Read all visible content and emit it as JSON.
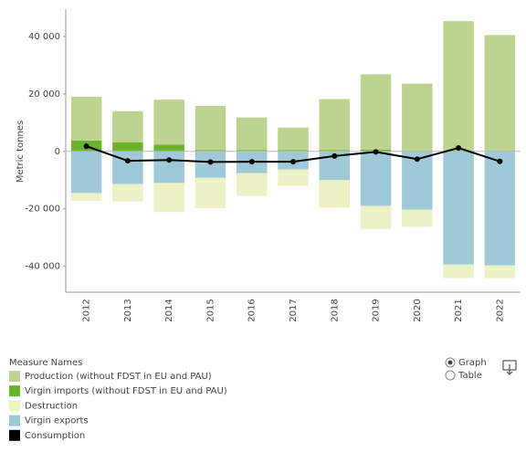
{
  "chart_data": {
    "type": "bar",
    "stacked": true,
    "y_label": "Metric tonnes",
    "categories": [
      "2012",
      "2013",
      "2014",
      "2015",
      "2016",
      "2017",
      "2018",
      "2019",
      "2020",
      "2021",
      "2022"
    ],
    "series": [
      {
        "name": "Production (without FDST in EU and PAU)",
        "color": "#bcd490",
        "values": [
          15200,
          10800,
          15600,
          15300,
          11300,
          7800,
          17700,
          26200,
          23400,
          45000,
          40300
        ]
      },
      {
        "name": "Virgin imports (without FDST in EU and PAU)",
        "color": "#6ab42d",
        "values": [
          3800,
          3200,
          2400,
          500,
          500,
          500,
          500,
          600,
          200,
          300,
          200
        ]
      },
      {
        "name": "Destruction",
        "color": "#eef0c6",
        "values": [
          -2700,
          -6000,
          -10100,
          -10500,
          -7900,
          -5700,
          -9600,
          -8000,
          -6000,
          -4700,
          -4400
        ]
      },
      {
        "name": "Virgin exports",
        "color": "#9fc9d6",
        "values": [
          -14500,
          -11400,
          -11000,
          -9200,
          -7600,
          -6300,
          -10000,
          -19000,
          -20300,
          -39400,
          -39700
        ]
      },
      {
        "name": "Consumption",
        "color": "#000000",
        "type": "line",
        "values": [
          1800,
          -3300,
          -3000,
          -3700,
          -3600,
          -3600,
          -1600,
          -200,
          -2700,
          1200,
          -3500
        ]
      }
    ],
    "ylim": [
      -49000,
      49500
    ],
    "yticks": [
      {
        "value": -40000,
        "label": "-40 000"
      },
      {
        "value": -20000,
        "label": "-20 000"
      },
      0,
      {
        "value": 20000,
        "label": "20 000"
      },
      {
        "value": 40000,
        "label": "40 000"
      }
    ],
    "zero_line": true,
    "legend_title": "Measure Names"
  },
  "controls": {
    "options": [
      "Graph",
      "Table"
    ],
    "selected": 0
  }
}
